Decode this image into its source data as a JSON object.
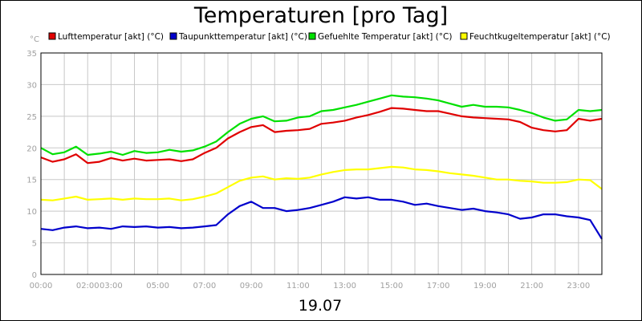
{
  "chart_data": {
    "type": "line",
    "title": "Temperaturen [pro Tag]",
    "y_unit": "°C",
    "date_label": "19.07",
    "ylim": [
      0,
      35
    ],
    "y_ticks": [
      0,
      5,
      10,
      15,
      20,
      25,
      30,
      35
    ],
    "xlim": [
      0,
      24
    ],
    "x_ticks": [
      {
        "label": "00:00",
        "hour": 0
      },
      {
        "label": "02:00",
        "hour": 2
      },
      {
        "label": "03:00",
        "hour": 3
      },
      {
        "label": "05:00",
        "hour": 5
      },
      {
        "label": "07:00",
        "hour": 7
      },
      {
        "label": "09:00",
        "hour": 9
      },
      {
        "label": "11:00",
        "hour": 11
      },
      {
        "label": "13:00",
        "hour": 13
      },
      {
        "label": "15:00",
        "hour": 15
      },
      {
        "label": "17:00",
        "hour": 17
      },
      {
        "label": "19:00",
        "hour": 19
      },
      {
        "label": "21:00",
        "hour": 21
      },
      {
        "label": "23:00",
        "hour": 23
      }
    ],
    "grid": true,
    "legend_position": "top",
    "x": [
      0,
      0.5,
      1,
      1.5,
      2,
      2.5,
      3,
      3.5,
      4,
      4.5,
      5,
      5.5,
      6,
      6.5,
      7,
      7.5,
      8,
      8.5,
      9,
      9.5,
      10,
      10.5,
      11,
      11.5,
      12,
      12.5,
      13,
      13.5,
      14,
      14.5,
      15,
      15.5,
      16,
      16.5,
      17,
      17.5,
      18,
      18.5,
      19,
      19.5,
      20,
      20.5,
      21,
      21.5,
      22,
      22.5,
      23,
      23.5,
      24
    ],
    "series": [
      {
        "name": "Lufttemperatur [akt] (°C)",
        "color": "#e00000",
        "values": [
          18.5,
          17.8,
          18.2,
          19.0,
          17.6,
          17.8,
          18.4,
          18.0,
          18.3,
          18.0,
          18.1,
          18.2,
          17.9,
          18.2,
          19.2,
          20.0,
          21.5,
          22.5,
          23.3,
          23.6,
          22.5,
          22.7,
          22.8,
          23.0,
          23.8,
          24.0,
          24.3,
          24.8,
          25.2,
          25.7,
          26.3,
          26.2,
          26.0,
          25.8,
          25.8,
          25.4,
          25.0,
          24.8,
          24.7,
          24.6,
          24.5,
          24.1,
          23.2,
          22.8,
          22.6,
          22.8,
          24.6,
          24.3,
          24.6
        ]
      },
      {
        "name": "Taupunkttemperatur [akt] (°C)",
        "color": "#0000cc",
        "values": [
          7.2,
          7.0,
          7.4,
          7.6,
          7.3,
          7.4,
          7.2,
          7.6,
          7.5,
          7.6,
          7.4,
          7.5,
          7.3,
          7.4,
          7.6,
          7.8,
          9.5,
          10.8,
          11.5,
          10.5,
          10.5,
          10.0,
          10.2,
          10.5,
          11.0,
          11.5,
          12.2,
          12.0,
          12.2,
          11.8,
          11.8,
          11.5,
          11.0,
          11.2,
          10.8,
          10.5,
          10.2,
          10.4,
          10.0,
          9.8,
          9.5,
          8.8,
          9.0,
          9.5,
          9.5,
          9.2,
          9.0,
          8.6,
          5.6
        ]
      },
      {
        "name": "Gefuehlte Temperatur [akt] (°C)",
        "color": "#00e000",
        "values": [
          20.0,
          19.0,
          19.3,
          20.2,
          18.9,
          19.1,
          19.4,
          18.9,
          19.5,
          19.2,
          19.3,
          19.7,
          19.4,
          19.6,
          20.2,
          21.0,
          22.5,
          23.8,
          24.6,
          25.0,
          24.2,
          24.3,
          24.8,
          25.0,
          25.8,
          26.0,
          26.4,
          26.8,
          27.3,
          27.8,
          28.3,
          28.1,
          28.0,
          27.8,
          27.5,
          27.0,
          26.5,
          26.8,
          26.5,
          26.5,
          26.4,
          26.0,
          25.5,
          24.8,
          24.3,
          24.5,
          26.0,
          25.8,
          26.0
        ]
      },
      {
        "name": "Feuchtkugeltemperatur [akt] (°C)",
        "color": "#ffff00",
        "values": [
          11.8,
          11.7,
          12.0,
          12.3,
          11.8,
          11.9,
          12.0,
          11.8,
          12.0,
          11.9,
          11.9,
          12.0,
          11.7,
          11.9,
          12.3,
          12.8,
          13.8,
          14.8,
          15.3,
          15.5,
          15.0,
          15.2,
          15.1,
          15.3,
          15.8,
          16.2,
          16.5,
          16.6,
          16.6,
          16.8,
          17.0,
          16.9,
          16.6,
          16.5,
          16.3,
          16.0,
          15.8,
          15.6,
          15.3,
          15.0,
          15.0,
          14.8,
          14.7,
          14.5,
          14.5,
          14.6,
          15.0,
          14.9,
          13.5
        ]
      }
    ]
  }
}
